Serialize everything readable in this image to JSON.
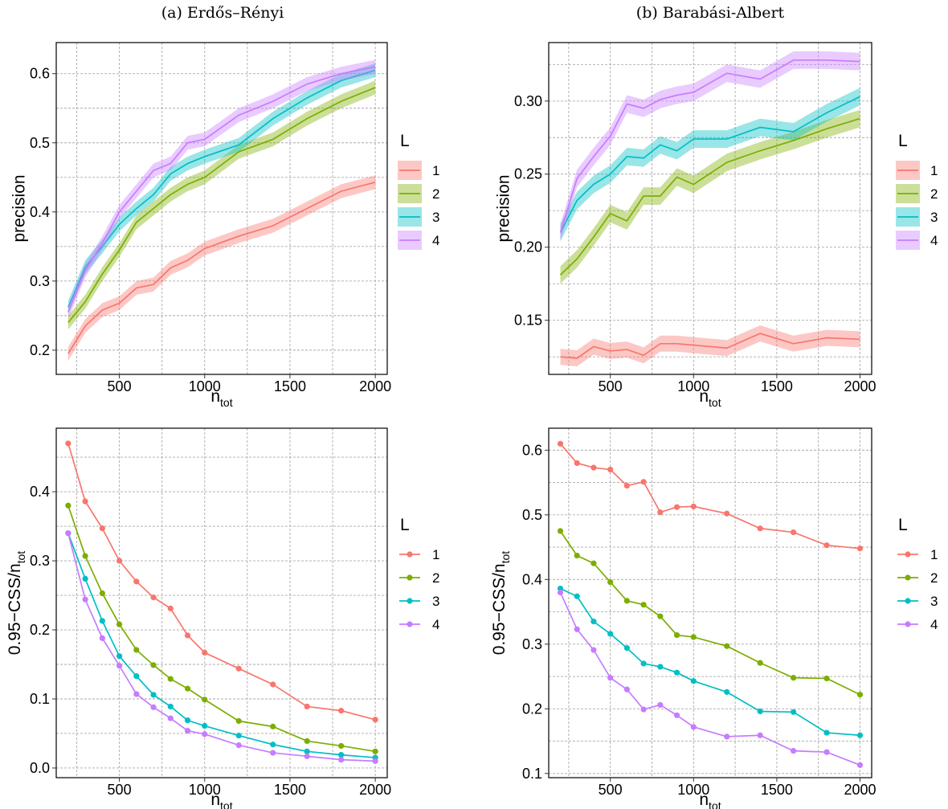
{
  "chart_data": [
    {
      "type": "line",
      "title": "(a) Erdős–Rényi",
      "xlabel": "n",
      "xlabel_sub": "tot",
      "ylabel": "precision",
      "xlim": [
        130,
        2070
      ],
      "ylim": [
        0.165,
        0.645
      ],
      "xticks": [
        500,
        1000,
        1500,
        2000
      ],
      "yticks": [
        0.2,
        0.3,
        0.4,
        0.5,
        0.6
      ],
      "tick_decimals": 1,
      "grid": true,
      "ribbon": true,
      "legend_title": "L",
      "x": [
        200,
        300,
        400,
        500,
        600,
        700,
        800,
        900,
        1000,
        1200,
        1400,
        1600,
        1800,
        2000
      ],
      "series": [
        {
          "name": "1",
          "color": "#F8766D",
          "values": [
            0.195,
            0.235,
            0.258,
            0.268,
            0.29,
            0.295,
            0.319,
            0.33,
            0.347,
            0.365,
            0.38,
            0.405,
            0.43,
            0.443
          ],
          "band": 0.01
        },
        {
          "name": "2",
          "color": "#7CAE00",
          "values": [
            0.24,
            0.27,
            0.31,
            0.345,
            0.385,
            0.405,
            0.425,
            0.44,
            0.45,
            0.487,
            0.505,
            0.535,
            0.56,
            0.58
          ],
          "band": 0.01
        },
        {
          "name": "3",
          "color": "#00BFC4",
          "values": [
            0.262,
            0.32,
            0.35,
            0.382,
            0.405,
            0.425,
            0.455,
            0.47,
            0.48,
            0.497,
            0.535,
            0.565,
            0.59,
            0.605
          ],
          "band": 0.01
        },
        {
          "name": "4",
          "color": "#C77CFF",
          "values": [
            0.255,
            0.315,
            0.355,
            0.4,
            0.43,
            0.46,
            0.47,
            0.5,
            0.505,
            0.54,
            0.56,
            0.585,
            0.6,
            0.61
          ],
          "band": 0.01
        }
      ]
    },
    {
      "type": "line",
      "title": "(b) Barabási-Albert",
      "xlabel": "n",
      "xlabel_sub": "tot",
      "ylabel": "precision",
      "xlim": [
        130,
        2070
      ],
      "ylim": [
        0.113,
        0.34
      ],
      "xticks": [
        500,
        1000,
        1500,
        2000
      ],
      "yticks": [
        0.15,
        0.2,
        0.25,
        0.3
      ],
      "tick_decimals": 2,
      "grid": true,
      "ribbon": true,
      "legend_title": "L",
      "x": [
        200,
        300,
        400,
        500,
        600,
        700,
        800,
        900,
        1000,
        1200,
        1400,
        1600,
        1800,
        2000
      ],
      "series": [
        {
          "name": "1",
          "color": "#F8766D",
          "values": [
            0.125,
            0.124,
            0.132,
            0.129,
            0.13,
            0.126,
            0.134,
            0.134,
            0.133,
            0.131,
            0.141,
            0.134,
            0.138,
            0.137
          ],
          "band": 0.0055
        },
        {
          "name": "2",
          "color": "#7CAE00",
          "values": [
            0.181,
            0.192,
            0.207,
            0.223,
            0.218,
            0.235,
            0.235,
            0.248,
            0.243,
            0.258,
            0.266,
            0.273,
            0.281,
            0.288
          ],
          "band": 0.006
        },
        {
          "name": "3",
          "color": "#00BFC4",
          "values": [
            0.21,
            0.232,
            0.243,
            0.25,
            0.262,
            0.261,
            0.27,
            0.266,
            0.274,
            0.274,
            0.282,
            0.279,
            0.292,
            0.303
          ],
          "band": 0.006
        },
        {
          "name": "4",
          "color": "#C77CFF",
          "values": [
            0.21,
            0.247,
            0.262,
            0.276,
            0.298,
            0.295,
            0.301,
            0.304,
            0.306,
            0.319,
            0.315,
            0.328,
            0.328,
            0.327
          ],
          "band": 0.006
        }
      ]
    },
    {
      "type": "line",
      "title": "",
      "xlabel": "n",
      "xlabel_sub": "tot",
      "ylabel": "0.95−CSS/n",
      "ylabel_sub": "tot",
      "xlim": [
        130,
        2070
      ],
      "ylim": [
        -0.014,
        0.492
      ],
      "xticks": [
        500,
        1000,
        1500,
        2000
      ],
      "yticks": [
        0.0,
        0.1,
        0.2,
        0.3,
        0.4
      ],
      "tick_decimals": 1,
      "grid": true,
      "markers": true,
      "legend_title": "L",
      "x": [
        200,
        300,
        400,
        500,
        600,
        700,
        800,
        900,
        1000,
        1200,
        1400,
        1600,
        1800,
        2000
      ],
      "series": [
        {
          "name": "1",
          "color": "#F8766D",
          "values": [
            0.47,
            0.386,
            0.347,
            0.3,
            0.27,
            0.247,
            0.231,
            0.192,
            0.167,
            0.144,
            0.121,
            0.089,
            0.083,
            0.07
          ]
        },
        {
          "name": "2",
          "color": "#7CAE00",
          "values": [
            0.38,
            0.307,
            0.253,
            0.208,
            0.171,
            0.149,
            0.129,
            0.115,
            0.099,
            0.068,
            0.06,
            0.039,
            0.032,
            0.024
          ]
        },
        {
          "name": "3",
          "color": "#00BFC4",
          "values": [
            0.34,
            0.274,
            0.213,
            0.162,
            0.133,
            0.106,
            0.089,
            0.069,
            0.061,
            0.047,
            0.034,
            0.024,
            0.019,
            0.015
          ]
        },
        {
          "name": "4",
          "color": "#C77CFF",
          "values": [
            0.34,
            0.244,
            0.188,
            0.148,
            0.107,
            0.088,
            0.072,
            0.054,
            0.049,
            0.033,
            0.022,
            0.017,
            0.012,
            0.01
          ]
        }
      ]
    },
    {
      "type": "line",
      "title": "",
      "xlabel": "n",
      "xlabel_sub": "tot",
      "ylabel": "0.95−CSS/n",
      "ylabel_sub": "tot",
      "xlim": [
        130,
        2070
      ],
      "ylim": [
        0.0935,
        0.634
      ],
      "xticks": [
        500,
        1000,
        1500,
        2000
      ],
      "yticks": [
        0.1,
        0.2,
        0.3,
        0.4,
        0.5,
        0.6
      ],
      "tick_decimals": 1,
      "grid": true,
      "markers": true,
      "legend_title": "L",
      "x": [
        200,
        300,
        400,
        500,
        600,
        700,
        800,
        900,
        1000,
        1200,
        1400,
        1600,
        1800,
        2000
      ],
      "series": [
        {
          "name": "1",
          "color": "#F8766D",
          "values": [
            0.61,
            0.58,
            0.573,
            0.57,
            0.545,
            0.551,
            0.504,
            0.512,
            0.513,
            0.502,
            0.479,
            0.473,
            0.453,
            0.448
          ]
        },
        {
          "name": "2",
          "color": "#7CAE00",
          "values": [
            0.475,
            0.437,
            0.425,
            0.396,
            0.367,
            0.361,
            0.343,
            0.314,
            0.311,
            0.297,
            0.271,
            0.248,
            0.247,
            0.222
          ]
        },
        {
          "name": "3",
          "color": "#00BFC4",
          "values": [
            0.386,
            0.374,
            0.335,
            0.316,
            0.294,
            0.27,
            0.265,
            0.256,
            0.243,
            0.226,
            0.196,
            0.195,
            0.163,
            0.159
          ]
        },
        {
          "name": "4",
          "color": "#C77CFF",
          "values": [
            0.38,
            0.323,
            0.291,
            0.248,
            0.23,
            0.199,
            0.206,
            0.19,
            0.172,
            0.157,
            0.159,
            0.135,
            0.133,
            0.113
          ]
        }
      ]
    }
  ]
}
